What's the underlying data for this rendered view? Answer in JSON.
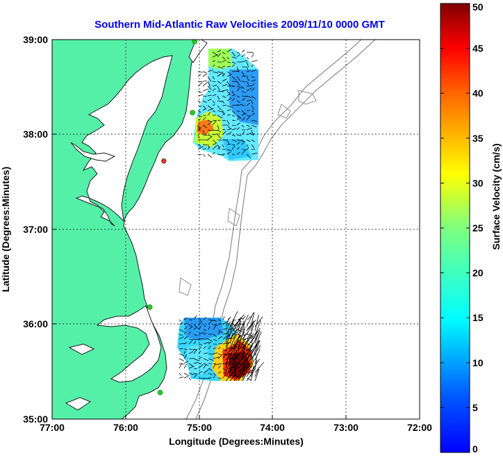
{
  "title": "Southern Mid-Atlantic Raw Velocities 2009/11/10 0000 GMT",
  "xlabel": "Longitude (Degrees:Minutes)",
  "ylabel": "Latitude (Degrees:Minutes)",
  "x_ticks": [
    "77:00",
    "76:00",
    "75:00",
    "74:00",
    "73:00",
    "72:00"
  ],
  "y_ticks": [
    "39:00",
    "38:00",
    "37:00",
    "36:00",
    "35:00"
  ],
  "colorbar": {
    "label": "Surface Velocity (cm/s)",
    "ticks": [
      "0",
      "5",
      "10",
      "15",
      "20",
      "25",
      "30",
      "35",
      "40",
      "45",
      "50"
    ],
    "range": [
      0,
      50
    ],
    "colormap": "jet"
  },
  "extent": {
    "lon": [
      -77,
      -72
    ],
    "lat": [
      35,
      39
    ]
  },
  "colors": {
    "land": "#55f0a8",
    "coast": "#1a1a1a",
    "bathymetry": "#8c8c8c",
    "grid": "#000000",
    "site_active": "#22cc22",
    "site_inactive": "#dd3333",
    "title": "#0000ee"
  },
  "sites": [
    {
      "lon": -75.06,
      "lat": 38.98,
      "status": "active"
    },
    {
      "lon": -75.09,
      "lat": 38.23,
      "status": "active"
    },
    {
      "lon": -75.48,
      "lat": 37.72,
      "status": "inactive"
    },
    {
      "lon": -75.67,
      "lat": 36.18,
      "status": "active"
    },
    {
      "lon": -75.53,
      "lat": 35.28,
      "status": "active"
    }
  ]
}
